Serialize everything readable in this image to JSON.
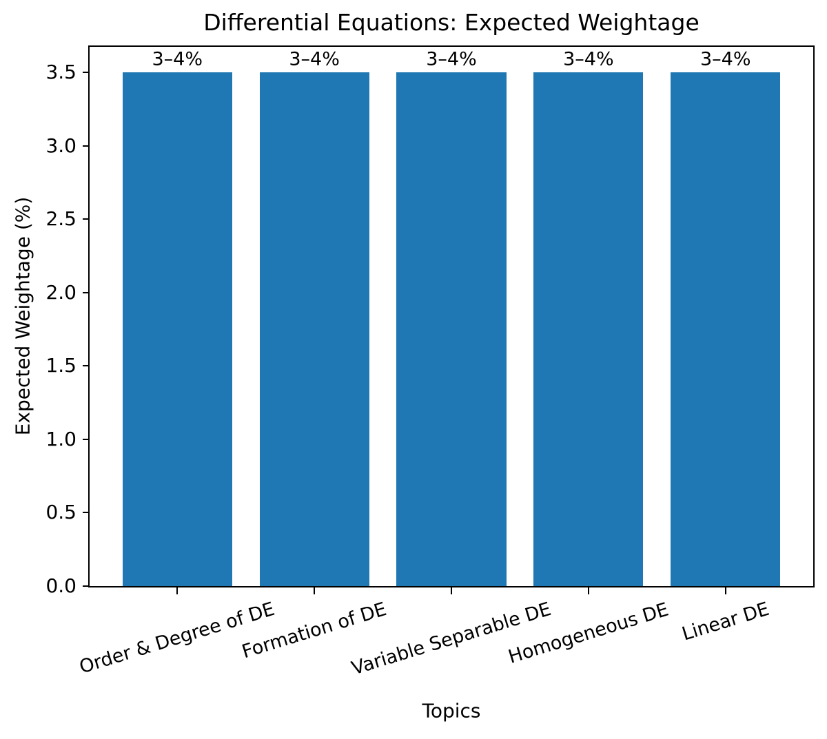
{
  "chart_data": {
    "type": "bar",
    "title": "Differential Equations: Expected Weightage",
    "xlabel": "Topics",
    "ylabel": "Expected Weightage (%)",
    "categories": [
      "Order & Degree of DE",
      "Formation of DE",
      "Variable Separable DE",
      "Homogeneous DE",
      "Linear DE"
    ],
    "values": [
      3.5,
      3.5,
      3.5,
      3.5,
      3.5
    ],
    "bar_labels": [
      "3–4%",
      "3–4%",
      "3–4%",
      "3–4%",
      "3–4%"
    ],
    "yticks": [
      0.0,
      0.5,
      1.0,
      1.5,
      2.0,
      2.5,
      3.0,
      3.5
    ],
    "ytick_labels": [
      "0.0",
      "0.5",
      "1.0",
      "1.5",
      "2.0",
      "2.5",
      "3.0",
      "3.5"
    ],
    "ylim": [
      0,
      3.675
    ],
    "bar_color": "#1f77b4",
    "grid": false,
    "legend": "none",
    "xtick_rotation_deg": 17
  }
}
